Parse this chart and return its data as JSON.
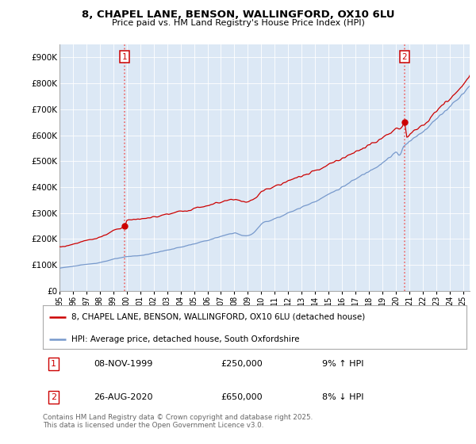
{
  "title": "8, CHAPEL LANE, BENSON, WALLINGFORD, OX10 6LU",
  "subtitle": "Price paid vs. HM Land Registry's House Price Index (HPI)",
  "red_label": "8, CHAPEL LANE, BENSON, WALLINGFORD, OX10 6LU (detached house)",
  "blue_label": "HPI: Average price, detached house, South Oxfordshire",
  "transaction1": {
    "num": "1",
    "date": "08-NOV-1999",
    "price": "£250,000",
    "change": "9% ↑ HPI"
  },
  "transaction2": {
    "num": "2",
    "date": "26-AUG-2020",
    "price": "£650,000",
    "change": "8% ↓ HPI"
  },
  "footer": "Contains HM Land Registry data © Crown copyright and database right 2025.\nThis data is licensed under the Open Government Licence v3.0.",
  "ylim": [
    0,
    950000
  ],
  "yticks": [
    0,
    100000,
    200000,
    300000,
    400000,
    500000,
    600000,
    700000,
    800000,
    900000
  ],
  "ytick_labels": [
    "£0",
    "£100K",
    "£200K",
    "£300K",
    "£400K",
    "£500K",
    "£600K",
    "£700K",
    "£800K",
    "£900K"
  ],
  "red_color": "#cc0000",
  "blue_color": "#7799cc",
  "bg_color": "#ffffff",
  "plot_bg_color": "#dce8f5",
  "grid_color": "#ffffff",
  "marker1_x": 1999.85,
  "marker1_y": 250000,
  "marker2_x": 2020.65,
  "marker2_y": 650000,
  "xmin": 1995.0,
  "xmax": 2025.5
}
